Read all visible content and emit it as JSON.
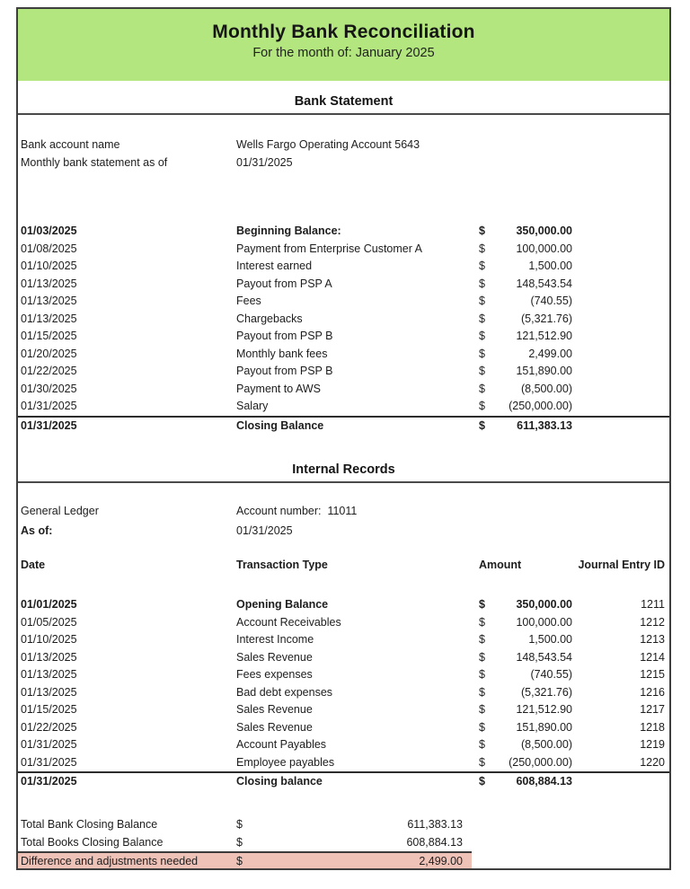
{
  "colors": {
    "header_green": "#b3e67e",
    "highlight_pink": "#efc2b8",
    "border_dark": "#3f3f3f"
  },
  "header": {
    "title": "Monthly Bank Reconciliation",
    "subtitle": "For the month of: January 2025"
  },
  "bank_statement": {
    "section_title": "Bank Statement",
    "info": [
      {
        "label": "Bank account name",
        "value": "Wells Fargo Operating Account 5643"
      },
      {
        "label": "Monthly bank statement as of",
        "value": "01/31/2025"
      }
    ],
    "rows": [
      {
        "date": "01/03/2025",
        "desc": "Beginning Balance:",
        "cur": "$",
        "amount": "350,000.00"
      },
      {
        "date": "01/08/2025",
        "desc": "Payment from Enterprise Customer A",
        "cur": "$",
        "amount": "100,000.00"
      },
      {
        "date": "01/10/2025",
        "desc": "Interest earned",
        "cur": "$",
        "amount": "1,500.00"
      },
      {
        "date": "01/13/2025",
        "desc": "Payout from PSP A",
        "cur": "$",
        "amount": "148,543.54"
      },
      {
        "date": "01/13/2025",
        "desc": "Fees",
        "cur": "$",
        "amount": "(740.55)"
      },
      {
        "date": "01/13/2025",
        "desc": "Chargebacks",
        "cur": "$",
        "amount": "(5,321.76)"
      },
      {
        "date": "01/15/2025",
        "desc": "Payout from PSP B",
        "cur": "$",
        "amount": "121,512.90"
      },
      {
        "date": "01/20/2025",
        "desc": "Monthly bank fees",
        "cur": "$",
        "amount": "2,499.00"
      },
      {
        "date": "01/22/2025",
        "desc": "Payout from PSP B",
        "cur": "$",
        "amount": "151,890.00"
      },
      {
        "date": "01/30/2025",
        "desc": "Payment to AWS",
        "cur": "$",
        "amount": "(8,500.00)"
      },
      {
        "date": "01/31/2025",
        "desc": "Salary",
        "cur": "$",
        "amount": "(250,000.00)"
      }
    ],
    "closing": {
      "date": "01/31/2025",
      "desc": "Closing Balance",
      "cur": "$",
      "amount": "611,383.13"
    }
  },
  "internal_records": {
    "section_title": "Internal Records",
    "info": [
      {
        "label": "General Ledger",
        "value": "Account number:  11011"
      },
      {
        "label": "As of:",
        "value": "01/31/2025"
      }
    ],
    "columns": {
      "date": "Date",
      "type": "Transaction Type",
      "amount": "Amount",
      "journal": "Journal Entry ID"
    },
    "rows": [
      {
        "date": "01/01/2025",
        "type": "Opening Balance",
        "cur": "$",
        "amount": "350,000.00",
        "id": "1211"
      },
      {
        "date": "01/05/2025",
        "type": "Account Receivables",
        "cur": "$",
        "amount": "100,000.00",
        "id": "1212"
      },
      {
        "date": "01/10/2025",
        "type": "Interest Income",
        "cur": "$",
        "amount": "1,500.00",
        "id": "1213"
      },
      {
        "date": "01/13/2025",
        "type": "Sales Revenue",
        "cur": "$",
        "amount": "148,543.54",
        "id": "1214"
      },
      {
        "date": "01/13/2025",
        "type": "Fees expenses",
        "cur": "$",
        "amount": "(740.55)",
        "id": "1215"
      },
      {
        "date": "01/13/2025",
        "type": "Bad debt expenses",
        "cur": "$",
        "amount": "(5,321.76)",
        "id": "1216"
      },
      {
        "date": "01/15/2025",
        "type": "Sales Revenue",
        "cur": "$",
        "amount": "121,512.90",
        "id": "1217"
      },
      {
        "date": "01/22/2025",
        "type": "Sales Revenue",
        "cur": "$",
        "amount": "151,890.00",
        "id": "1218"
      },
      {
        "date": "01/31/2025",
        "type": "Account Payables",
        "cur": "$",
        "amount": "(8,500.00)",
        "id": "1219"
      },
      {
        "date": "01/31/2025",
        "type": "Employee payables",
        "cur": "$",
        "amount": "(250,000.00)",
        "id": "1220"
      }
    ],
    "closing": {
      "date": "01/31/2025",
      "type": "Closing balance",
      "cur": "$",
      "amount": "608,884.13"
    }
  },
  "summary": {
    "rows": [
      {
        "label": "Total Bank Closing Balance",
        "cur": "$",
        "amount": "611,383.13"
      },
      {
        "label": "Total Books Closing Balance",
        "cur": "$",
        "amount": "608,884.13"
      },
      {
        "label": "Difference and adjustments needed",
        "cur": "$",
        "amount": "2,499.00"
      }
    ]
  }
}
